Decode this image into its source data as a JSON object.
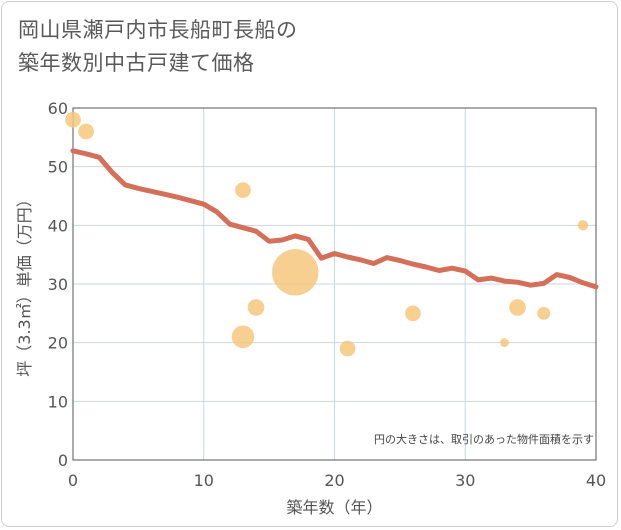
{
  "title_lines": [
    "岡山県瀬戸内市長船町長船の",
    "築年数別中古戸建て価格"
  ],
  "colors": {
    "line": "#d4705a",
    "bubble": "#f5c77e",
    "grid": "#c9d6e3",
    "axis": "#555555"
  },
  "chart_data": {
    "type": "scatter",
    "title": "岡山県瀬戸内市長船町長船の築年数別中古戸建て価格",
    "xlabel": "築年数（年）",
    "ylabel": "坪（3.3㎡）単価（万円）",
    "xlim": [
      0,
      40
    ],
    "ylim": [
      0,
      60
    ],
    "x_ticks": [
      "0",
      "10",
      "20",
      "30",
      "40"
    ],
    "y_ticks": [
      "0",
      "10",
      "20",
      "30",
      "40",
      "50",
      "60"
    ],
    "grid": true,
    "note": "円の大きさは、取引のあった物件面積を示す",
    "series": [
      {
        "type": "line",
        "points": [
          [
            0,
            52.7
          ],
          [
            1,
            52.2
          ],
          [
            2,
            51.6
          ],
          [
            3,
            49.0
          ],
          [
            4,
            46.9
          ],
          [
            5,
            46.3
          ],
          [
            6,
            45.8
          ],
          [
            7,
            45.3
          ],
          [
            8,
            44.8
          ],
          [
            9,
            44.2
          ],
          [
            10,
            43.6
          ],
          [
            11,
            42.3
          ],
          [
            12,
            40.2
          ],
          [
            13,
            39.6
          ],
          [
            14,
            39.0
          ],
          [
            15,
            37.3
          ],
          [
            16,
            37.5
          ],
          [
            17,
            38.2
          ],
          [
            18,
            37.6
          ],
          [
            19,
            34.4
          ],
          [
            20,
            35.2
          ],
          [
            21,
            34.6
          ],
          [
            22,
            34.1
          ],
          [
            23,
            33.5
          ],
          [
            24,
            34.5
          ],
          [
            25,
            34.0
          ],
          [
            26,
            33.4
          ],
          [
            27,
            32.9
          ],
          [
            28,
            32.3
          ],
          [
            29,
            32.7
          ],
          [
            30,
            32.2
          ],
          [
            31,
            30.7
          ],
          [
            32,
            31.0
          ],
          [
            33,
            30.5
          ],
          [
            34,
            30.3
          ],
          [
            35,
            29.8
          ],
          [
            36,
            30.1
          ],
          [
            37,
            31.6
          ],
          [
            38,
            31.1
          ],
          [
            39,
            30.2
          ],
          [
            40,
            29.5
          ]
        ]
      },
      {
        "type": "bubble",
        "points": [
          {
            "x": 0,
            "y": 58,
            "size": 1.6
          },
          {
            "x": 1,
            "y": 56,
            "size": 1.6
          },
          {
            "x": 13,
            "y": 46,
            "size": 1.6
          },
          {
            "x": 13,
            "y": 21,
            "size": 3.3
          },
          {
            "x": 14,
            "y": 26,
            "size": 1.8
          },
          {
            "x": 17,
            "y": 32,
            "size": 14
          },
          {
            "x": 21,
            "y": 19,
            "size": 1.6
          },
          {
            "x": 26,
            "y": 25,
            "size": 1.6
          },
          {
            "x": 33,
            "y": 20,
            "size": 0.5
          },
          {
            "x": 34,
            "y": 26,
            "size": 1.8
          },
          {
            "x": 36,
            "y": 25,
            "size": 1.1
          },
          {
            "x": 39,
            "y": 40,
            "size": 0.7
          }
        ]
      }
    ]
  }
}
